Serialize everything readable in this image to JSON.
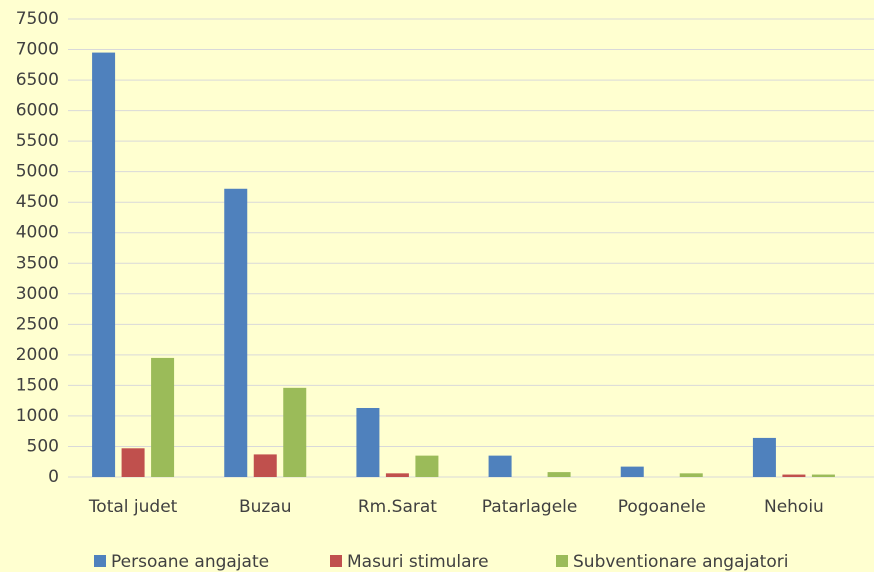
{
  "chart_data": {
    "type": "bar",
    "categories": [
      "Total judet",
      "Buzau",
      "Rm.Sarat",
      "Patarlagele",
      "Pogoanele",
      "Nehoiu"
    ],
    "series": [
      {
        "name": "Persoane angajate",
        "color": "#4f81bd",
        "values": [
          6950,
          4720,
          1130,
          350,
          170,
          640
        ]
      },
      {
        "name": "Masuri stimulare",
        "color": "#c0504d",
        "values": [
          470,
          370,
          60,
          0,
          0,
          40
        ]
      },
      {
        "name": "Subventionare angajatori",
        "color": "#9bbb59",
        "values": [
          1950,
          1460,
          350,
          80,
          60,
          40
        ]
      }
    ],
    "ylim": [
      0,
      7500
    ],
    "yticks": [
      0,
      500,
      1000,
      1500,
      2000,
      2500,
      3000,
      3500,
      4000,
      4500,
      5000,
      5500,
      6000,
      6500,
      7000,
      7500
    ],
    "grid": true,
    "legend": "bottom"
  }
}
